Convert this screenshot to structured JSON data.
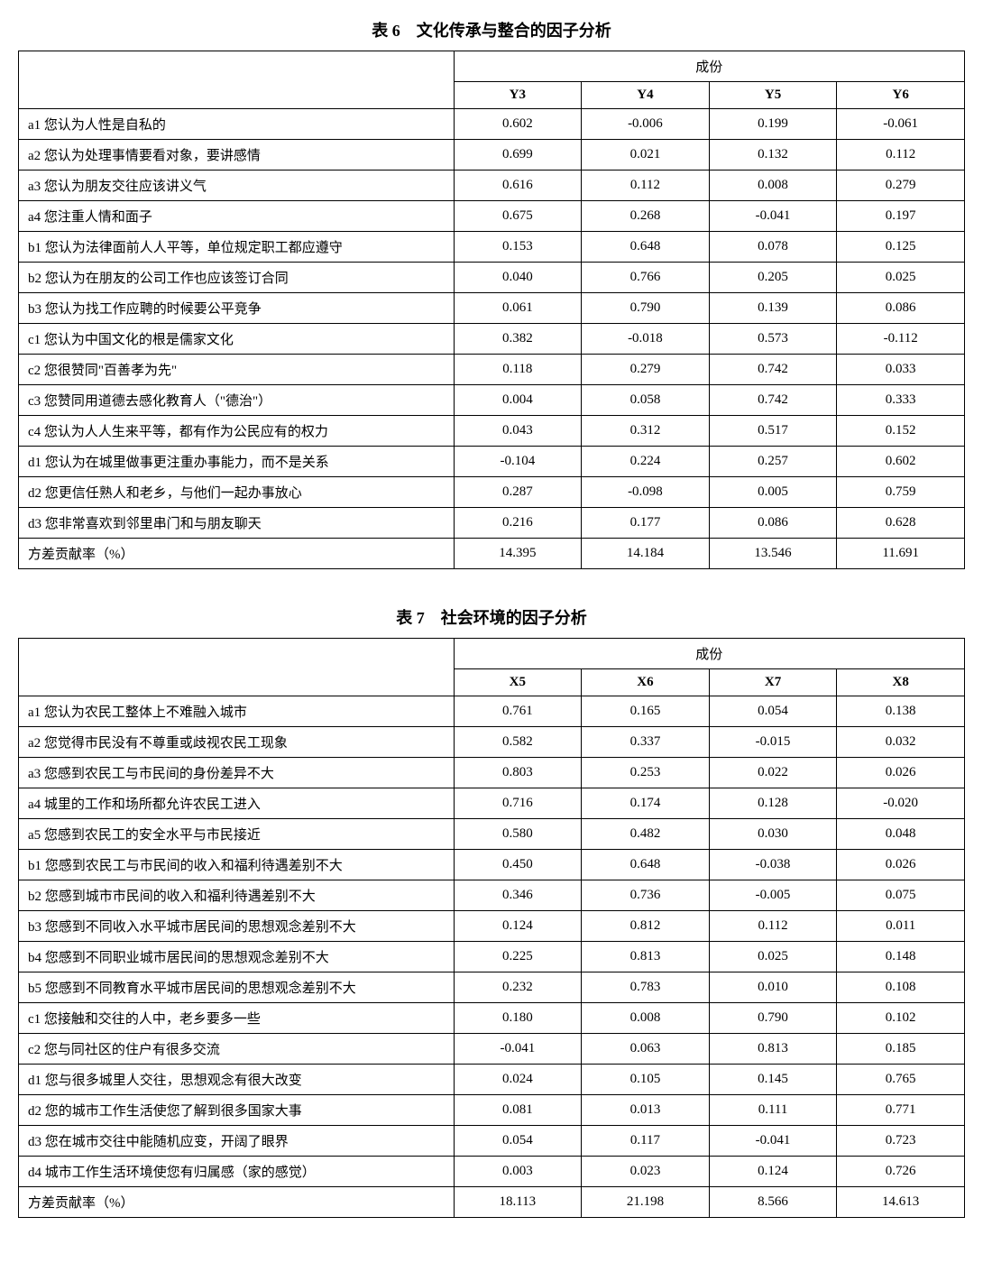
{
  "table1": {
    "title": "表 6　文化传承与整合的因子分析",
    "group_header": "成份",
    "columns": [
      "Y3",
      "Y4",
      "Y5",
      "Y6"
    ],
    "rows": [
      {
        "label": "a1 您认为人性是自私的",
        "values": [
          "0.602",
          "-0.006",
          "0.199",
          "-0.061"
        ]
      },
      {
        "label": "a2 您认为处理事情要看对象，要讲感情",
        "values": [
          "0.699",
          "0.021",
          "0.132",
          "0.112"
        ]
      },
      {
        "label": "a3 您认为朋友交往应该讲义气",
        "values": [
          "0.616",
          "0.112",
          "0.008",
          "0.279"
        ]
      },
      {
        "label": "a4 您注重人情和面子",
        "values": [
          "0.675",
          "0.268",
          "-0.041",
          "0.197"
        ]
      },
      {
        "label": "b1 您认为法律面前人人平等，单位规定职工都应遵守",
        "values": [
          "0.153",
          "0.648",
          "0.078",
          "0.125"
        ]
      },
      {
        "label": "b2 您认为在朋友的公司工作也应该签订合同",
        "values": [
          "0.040",
          "0.766",
          "0.205",
          "0.025"
        ]
      },
      {
        "label": "b3 您认为找工作应聘的时候要公平竞争",
        "values": [
          "0.061",
          "0.790",
          "0.139",
          "0.086"
        ]
      },
      {
        "label": "c1 您认为中国文化的根是儒家文化",
        "values": [
          "0.382",
          "-0.018",
          "0.573",
          "-0.112"
        ]
      },
      {
        "label": "c2 您很赞同\"百善孝为先\"",
        "values": [
          "0.118",
          "0.279",
          "0.742",
          "0.033"
        ]
      },
      {
        "label": "c3 您赞同用道德去感化教育人（\"德治\"）",
        "values": [
          "0.004",
          "0.058",
          "0.742",
          "0.333"
        ]
      },
      {
        "label": "c4 您认为人人生来平等，都有作为公民应有的权力",
        "values": [
          "0.043",
          "0.312",
          "0.517",
          "0.152"
        ]
      },
      {
        "label": "d1 您认为在城里做事更注重办事能力，而不是关系",
        "values": [
          "-0.104",
          "0.224",
          "0.257",
          "0.602"
        ]
      },
      {
        "label": "d2 您更信任熟人和老乡，与他们一起办事放心",
        "values": [
          "0.287",
          "-0.098",
          "0.005",
          "0.759"
        ]
      },
      {
        "label": "d3 您非常喜欢到邻里串门和与朋友聊天",
        "values": [
          "0.216",
          "0.177",
          "0.086",
          "0.628"
        ]
      },
      {
        "label": "方差贡献率（%）",
        "values": [
          "14.395",
          "14.184",
          "13.546",
          "11.691"
        ]
      }
    ]
  },
  "table2": {
    "title": "表 7　社会环境的因子分析",
    "group_header": "成份",
    "columns": [
      "X5",
      "X6",
      "X7",
      "X8"
    ],
    "rows": [
      {
        "label": "a1 您认为农民工整体上不难融入城市",
        "values": [
          "0.761",
          "0.165",
          "0.054",
          "0.138"
        ]
      },
      {
        "label": "a2 您觉得市民没有不尊重或歧视农民工现象",
        "values": [
          "0.582",
          "0.337",
          "-0.015",
          "0.032"
        ]
      },
      {
        "label": "a3 您感到农民工与市民间的身份差异不大",
        "values": [
          "0.803",
          "0.253",
          "0.022",
          "0.026"
        ]
      },
      {
        "label": "a4 城里的工作和场所都允许农民工进入",
        "values": [
          "0.716",
          "0.174",
          "0.128",
          "-0.020"
        ]
      },
      {
        "label": "a5 您感到农民工的安全水平与市民接近",
        "values": [
          "0.580",
          "0.482",
          "0.030",
          "0.048"
        ]
      },
      {
        "label": "b1 您感到农民工与市民间的收入和福利待遇差别不大",
        "values": [
          "0.450",
          "0.648",
          "-0.038",
          "0.026"
        ]
      },
      {
        "label": "b2 您感到城市市民间的收入和福利待遇差别不大",
        "values": [
          "0.346",
          "0.736",
          "-0.005",
          "0.075"
        ]
      },
      {
        "label": "b3 您感到不同收入水平城市居民间的思想观念差别不大",
        "values": [
          "0.124",
          "0.812",
          "0.112",
          "0.011"
        ]
      },
      {
        "label": "b4 您感到不同职业城市居民间的思想观念差别不大",
        "values": [
          "0.225",
          "0.813",
          "0.025",
          "0.148"
        ]
      },
      {
        "label": "b5 您感到不同教育水平城市居民间的思想观念差别不大",
        "values": [
          "0.232",
          "0.783",
          "0.010",
          "0.108"
        ]
      },
      {
        "label": "c1 您接触和交往的人中，老乡要多一些",
        "values": [
          "0.180",
          "0.008",
          "0.790",
          "0.102"
        ]
      },
      {
        "label": "c2 您与同社区的住户有很多交流",
        "values": [
          "-0.041",
          "0.063",
          "0.813",
          "0.185"
        ]
      },
      {
        "label": "d1 您与很多城里人交往，思想观念有很大改变",
        "values": [
          "0.024",
          "0.105",
          "0.145",
          "0.765"
        ]
      },
      {
        "label": "d2 您的城市工作生活使您了解到很多国家大事",
        "values": [
          "0.081",
          "0.013",
          "0.111",
          "0.771"
        ]
      },
      {
        "label": "d3 您在城市交往中能随机应变，开阔了眼界",
        "values": [
          "0.054",
          "0.117",
          "-0.041",
          "0.723"
        ]
      },
      {
        "label": "d4 城市工作生活环境使您有归属感（家的感觉）",
        "values": [
          "0.003",
          "0.023",
          "0.124",
          "0.726"
        ]
      },
      {
        "label": "方差贡献率（%）",
        "values": [
          "18.113",
          "21.198",
          "8.566",
          "14.613"
        ]
      }
    ]
  },
  "style": {
    "label_col_width_pct": 46,
    "num_col_width_pct": 13.5
  }
}
